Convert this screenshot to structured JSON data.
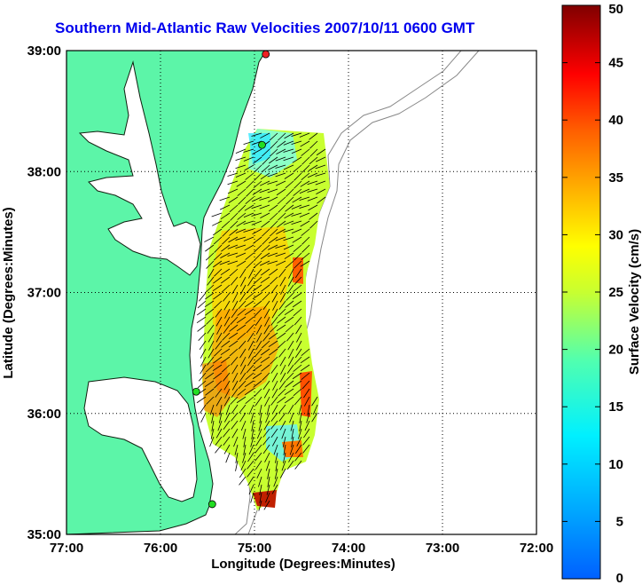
{
  "title": "Southern Mid-Atlantic Raw Velocities 2007/10/11 0600 GMT",
  "xlabel": "Longitude (Degrees:Minutes)",
  "ylabel": "Latitude (Degrees:Minutes)",
  "x_ticks": [
    "77:00",
    "76:00",
    "75:00",
    "74:00",
    "73:00",
    "72:00"
  ],
  "y_ticks": [
    "39:00",
    "38:00",
    "37:00",
    "36:00",
    "35:00"
  ],
  "colorbar": {
    "label": "Surface Velocity (cm/s)",
    "ticks": [
      "50",
      "45",
      "40",
      "35",
      "30",
      "25",
      "20",
      "15",
      "10",
      "5",
      "0"
    ],
    "range": [
      0,
      50
    ]
  },
  "colors": {
    "land": "#5cf5a8",
    "water": "#ffffff",
    "title": "#0000ee",
    "station": "#22dd22",
    "station_alt": "#ee2222"
  },
  "map": {
    "lon_range": [
      -77,
      -72
    ],
    "lat_range": [
      35,
      39
    ],
    "grid": true,
    "stations": [
      {
        "lon": -74.88,
        "lat": 38.97,
        "color": "station_alt"
      },
      {
        "lon": -74.92,
        "lat": 38.22,
        "color": "station"
      },
      {
        "lon": -75.62,
        "lat": 36.18,
        "color": "station"
      },
      {
        "lon": -75.45,
        "lat": 35.25,
        "color": "station"
      }
    ]
  }
}
